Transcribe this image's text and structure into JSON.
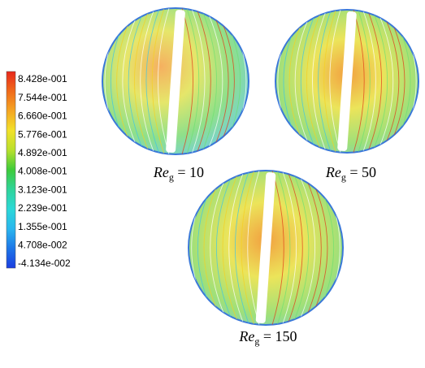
{
  "colorbar": {
    "labels": [
      "8.428e-001",
      "7.544e-001",
      "6.660e-001",
      "5.776e-001",
      "4.892e-001",
      "4.008e-001",
      "3.123e-001",
      "2.239e-001",
      "1.355e-001",
      "4.708e-002",
      "-4.134e-002"
    ]
  },
  "panels": [
    {
      "caption": {
        "symbol": "Re",
        "subscript": "g",
        "rest": " = 10"
      }
    },
    {
      "caption": {
        "symbol": "Re",
        "subscript": "g",
        "rest": " = 50"
      }
    },
    {
      "caption": {
        "symbol": "Re",
        "subscript": "g",
        "rest": " = 150"
      }
    }
  ]
}
